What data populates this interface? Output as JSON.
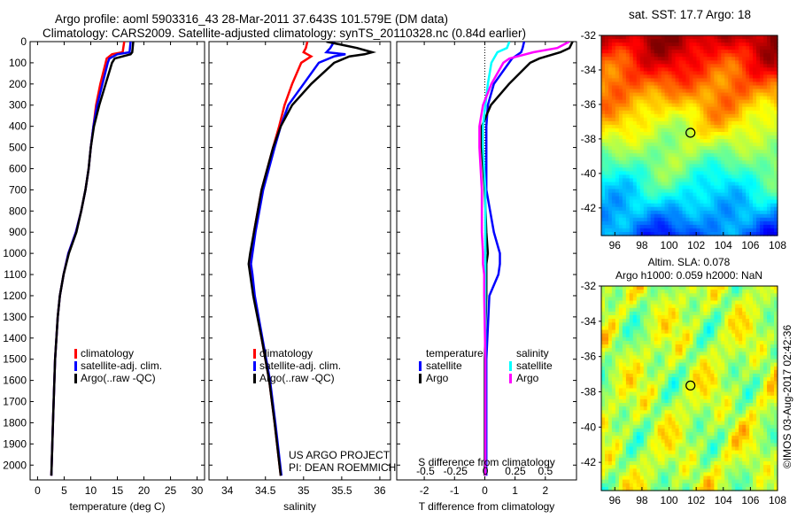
{
  "title_line1": "Argo profile: aoml 5903316_43 28-Mar-2011 37.643S 101.579E (DM data)",
  "title_line2": "Climatology: CARS2009. Satellite-adjusted climatology: synTS_20110328.nc (0.84d earlier)",
  "credit": "©IMOS 03-Aug-2017 02:42:36",
  "project": {
    "line1": "US ARGO PROJECT",
    "line2": "PI: DEAN ROEMMICH"
  },
  "colors": {
    "clim": "#ff0000",
    "sat": "#0000ff",
    "argo": "#000000",
    "sal_sat": "#00ffff",
    "sal_argo": "#ff00ff"
  },
  "chart_data": [
    {
      "type": "line",
      "xlabel": "temperature (deg C)",
      "ylabel": "",
      "xlim": [
        -1.4,
        31.4
      ],
      "ylim": [
        2070,
        0
      ],
      "xticks": [
        "0",
        "5",
        "10",
        "15",
        "20",
        "25",
        "30"
      ],
      "yticks": [
        "0",
        "100",
        "200",
        "300",
        "400",
        "500",
        "600",
        "700",
        "800",
        "900",
        "1000",
        "1100",
        "1200",
        "1300",
        "1400",
        "1500",
        "1600",
        "1700",
        "1800",
        "1900",
        "2000"
      ],
      "legend": [
        "climatology",
        "satellite-adj. clim.",
        "Argo(..raw -QC)"
      ],
      "depth": [
        0,
        50,
        60,
        80,
        100,
        200,
        300,
        400,
        500,
        600,
        700,
        800,
        900,
        1000,
        1100,
        1200,
        1300,
        1500,
        1800,
        2050
      ],
      "series": [
        {
          "name": "climatology",
          "values": [
            16.3,
            16,
            14,
            13,
            12.8,
            11.8,
            11,
            10.5,
            10,
            9.6,
            9,
            8.2,
            7.2,
            5.8,
            4.9,
            4.2,
            3.8,
            3.3,
            2.9,
            2.6
          ]
        },
        {
          "name": "satellite-adj. clim.",
          "values": [
            17.5,
            17.3,
            15,
            13.5,
            13.2,
            12.2,
            11.2,
            10.5,
            10,
            9.6,
            9,
            8.2,
            7.2,
            5.8,
            4.9,
            4.2,
            3.8,
            3.3,
            2.9,
            2.6
          ]
        },
        {
          "name": "Argo(..raw -QC)",
          "values": [
            18,
            17.8,
            17.5,
            14.5,
            14,
            12.8,
            11.6,
            10.6,
            10,
            9.6,
            9,
            8.2,
            7.3,
            5.9,
            4.9,
            4.2,
            3.8,
            3.3,
            2.9,
            2.6
          ]
        }
      ]
    },
    {
      "type": "line",
      "xlabel": "salinity",
      "ylabel": "",
      "xlim": [
        33.76,
        36.14
      ],
      "ylim": [
        2070,
        0
      ],
      "xticks": [
        "34",
        "34.5",
        "35",
        "35.5",
        "36"
      ],
      "legend": [
        "climatology",
        "satellite-adj. clim.",
        "Argo(..raw -QC)"
      ],
      "depth": [
        0,
        30,
        50,
        60,
        70,
        100,
        200,
        300,
        400,
        500,
        700,
        900,
        1000,
        1050,
        1100,
        1200,
        1400,
        1600,
        1800,
        2050
      ],
      "series": [
        {
          "name": "climatology",
          "values": [
            35.05,
            35.03,
            35.0,
            35.05,
            35.1,
            34.97,
            34.85,
            34.75,
            34.68,
            34.6,
            34.45,
            34.35,
            34.32,
            34.3,
            34.32,
            34.35,
            34.45,
            34.55,
            34.62,
            34.7
          ]
        },
        {
          "name": "satellite-adj. clim.",
          "values": [
            35.4,
            35.35,
            35.3,
            35.55,
            35.4,
            35.2,
            35.0,
            34.8,
            34.7,
            34.62,
            34.47,
            34.37,
            34.33,
            34.31,
            34.33,
            34.36,
            34.46,
            34.56,
            34.63,
            34.71
          ]
        },
        {
          "name": "Argo(..raw -QC)",
          "values": [
            35.3,
            35.7,
            35.9,
            35.8,
            35.6,
            35.4,
            35.1,
            34.85,
            34.7,
            34.6,
            34.45,
            34.35,
            34.3,
            34.28,
            34.3,
            34.34,
            34.45,
            34.55,
            34.62,
            34.7
          ]
        }
      ]
    },
    {
      "type": "line",
      "xlabel": "T difference from climatology",
      "x2label": "S difference from climatology",
      "xlim": [
        -2.91,
        3.03
      ],
      "x2lim": [
        -0.74,
        0.76
      ],
      "ylim": [
        2070,
        0
      ],
      "xticks": [
        "-2",
        "-1",
        "0",
        "1",
        "2"
      ],
      "x2ticks": [
        "-0.5",
        "-0.25",
        "0",
        "0.25",
        "0.5"
      ],
      "legend_t_title": "temperature",
      "legend_s_title": "salinity",
      "legend": [
        "satellite",
        "Argo",
        "satellite",
        "Argo"
      ],
      "depth": [
        0,
        30,
        50,
        80,
        100,
        200,
        300,
        400,
        500,
        700,
        900,
        1000,
        1050,
        1100,
        1200,
        1500,
        2050
      ],
      "series": [
        {
          "name": "T satellite",
          "axis": "T",
          "values": [
            1.3,
            1.25,
            1.2,
            0.9,
            0.8,
            0.3,
            0.1,
            0.05,
            0.05,
            0.05,
            0.3,
            0.5,
            0.5,
            0.45,
            0.15,
            0.05,
            0.05
          ]
        },
        {
          "name": "T Argo",
          "axis": "T",
          "values": [
            2.9,
            2.8,
            2.5,
            1.8,
            1.5,
            0.8,
            0.2,
            -0.1,
            -0.1,
            0,
            0.05,
            0.1,
            0.05,
            0.05,
            0.05,
            0,
            0
          ]
        },
        {
          "name": "S satellite",
          "axis": "S",
          "values": [
            0.2,
            0.18,
            0.1,
            0.07,
            0.05,
            0.02,
            0.0,
            -0.02,
            -0.02,
            0,
            0,
            0,
            0,
            0,
            0,
            0,
            0
          ]
        },
        {
          "name": "S Argo",
          "axis": "S",
          "values": [
            0.7,
            0.6,
            0.4,
            0.2,
            0.15,
            0.05,
            -0.02,
            -0.05,
            -0.05,
            -0.03,
            -0.03,
            -0.02,
            -0.02,
            -0.01,
            -0.01,
            0,
            0
          ]
        }
      ]
    },
    {
      "type": "heatmap",
      "title": "sat. SST: 17.7 Argo: 18",
      "xticks": [
        "96",
        "98",
        "100",
        "102",
        "104",
        "106",
        "108"
      ],
      "yticks": [
        "-32",
        "-34",
        "-36",
        "-38",
        "-40",
        "-42"
      ],
      "xlim": [
        95,
        108
      ],
      "ylim": [
        -43.6,
        -32
      ],
      "marker": [
        101.579,
        -37.643
      ]
    },
    {
      "type": "heatmap",
      "title": "Altim. SLA: 0.078",
      "subtitle": "Argo h1000: 0.059 h2000: NaN",
      "xticks": [
        "96",
        "98",
        "100",
        "102",
        "104",
        "106",
        "108"
      ],
      "yticks": [
        "-32",
        "-34",
        "-36",
        "-38",
        "-40",
        "-42"
      ],
      "xlim": [
        95,
        108
      ],
      "ylim": [
        -43.6,
        -32
      ],
      "marker": [
        101.579,
        -37.643
      ]
    }
  ]
}
